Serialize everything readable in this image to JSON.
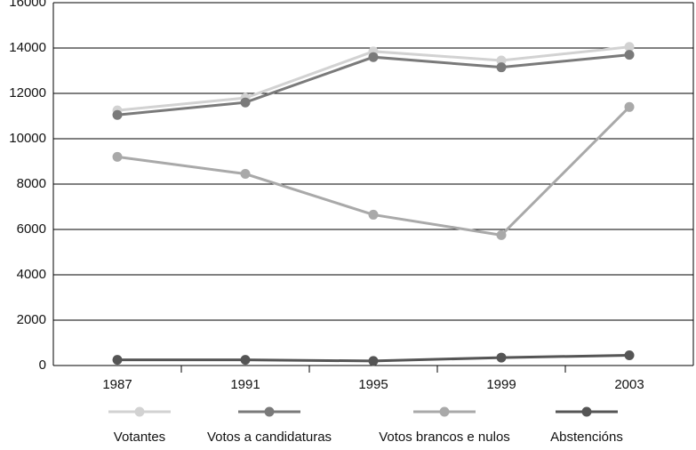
{
  "chart_data": {
    "type": "line",
    "categories": [
      "1987",
      "1991",
      "1995",
      "1999",
      "2003"
    ],
    "series": [
      {
        "name": "Votantes",
        "color": "#d2d2d2",
        "values": [
          11250,
          11800,
          13850,
          13450,
          14050
        ]
      },
      {
        "name": "Votos a candidaturas",
        "color": "#7a7a7a",
        "values": [
          11050,
          11600,
          13600,
          13150,
          13700
        ]
      },
      {
        "name": "Votos brancos e nulos",
        "color": "#a9a9a9",
        "values": [
          9200,
          8450,
          6650,
          5750,
          11400
        ]
      },
      {
        "name": "Abstencións",
        "color": "#555555",
        "values": [
          250,
          250,
          200,
          350,
          450
        ]
      }
    ],
    "ylim": [
      0,
      16000
    ],
    "yticks": [
      0,
      2000,
      4000,
      6000,
      8000,
      10000,
      12000,
      14000,
      16000
    ],
    "grid": true,
    "legend": "bottom"
  }
}
